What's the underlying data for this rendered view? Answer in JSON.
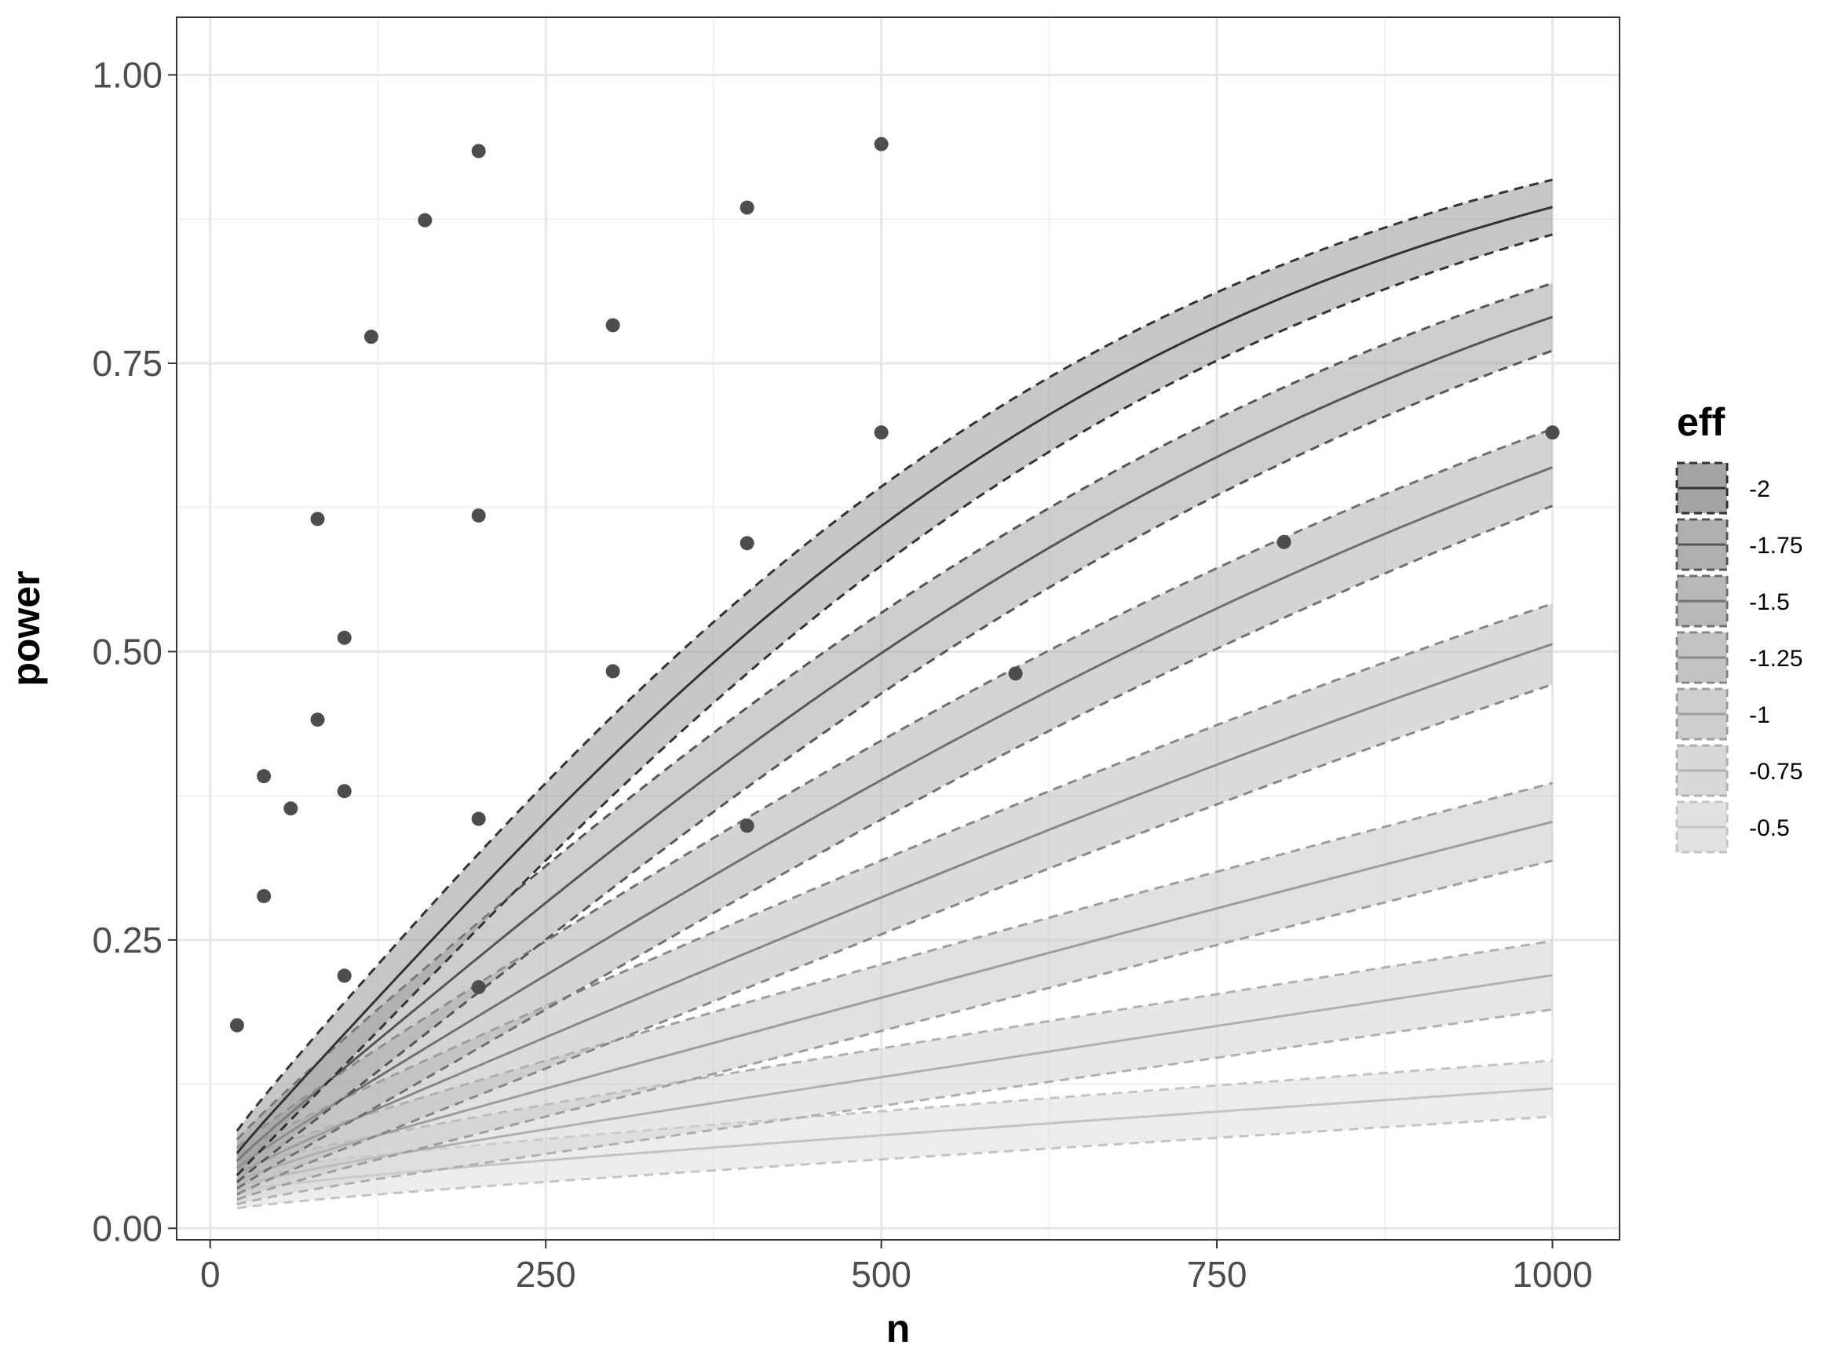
{
  "chart_data": {
    "type": "line",
    "xlabel": "n",
    "ylabel": "power",
    "xlim": [
      -25,
      1050
    ],
    "ylim": [
      -0.01,
      1.05
    ],
    "x_ticks": [
      0,
      250,
      500,
      750,
      1000
    ],
    "x_tick_labels": [
      "0",
      "250",
      "500",
      "750",
      "1000"
    ],
    "y_ticks": [
      0,
      0.25,
      0.5,
      0.75,
      1
    ],
    "y_tick_labels": [
      "0.00",
      "0.25",
      "0.50",
      "0.75",
      "1.00"
    ],
    "grid": true,
    "legend": {
      "title": "eff",
      "position": "right"
    },
    "curve_n_range": [
      20,
      1000
    ],
    "series": [
      {
        "name": "-2",
        "color": "#333333",
        "ribbon": "#999999"
      },
      {
        "name": "-1.75",
        "color": "#555555",
        "ribbon": "#a6a6a6"
      },
      {
        "name": "-1.5",
        "color": "#707070",
        "ribbon": "#b0b0b0"
      },
      {
        "name": "-1.25",
        "color": "#888888",
        "ribbon": "#bdbdbd"
      },
      {
        "name": "-1",
        "color": "#9e9e9e",
        "ribbon": "#c9c9c9"
      },
      {
        "name": "-0.75",
        "color": "#b0b0b0",
        "ribbon": "#d4d4d4"
      },
      {
        "name": "-0.5",
        "color": "#c4c4c4",
        "ribbon": "#dedede"
      }
    ],
    "points": [
      {
        "x": 20,
        "y": 0.176
      },
      {
        "x": 40,
        "y": 0.392
      },
      {
        "x": 40,
        "y": 0.288
      },
      {
        "x": 60,
        "y": 0.364
      },
      {
        "x": 80,
        "y": 0.615
      },
      {
        "x": 80,
        "y": 0.441
      },
      {
        "x": 100,
        "y": 0.512
      },
      {
        "x": 100,
        "y": 0.379
      },
      {
        "x": 100,
        "y": 0.219
      },
      {
        "x": 120,
        "y": 0.773
      },
      {
        "x": 160,
        "y": 0.874
      },
      {
        "x": 200,
        "y": 0.934
      },
      {
        "x": 200,
        "y": 0.618
      },
      {
        "x": 200,
        "y": 0.355
      },
      {
        "x": 200,
        "y": 0.209
      },
      {
        "x": 300,
        "y": 0.783
      },
      {
        "x": 300,
        "y": 0.483
      },
      {
        "x": 400,
        "y": 0.885
      },
      {
        "x": 400,
        "y": 0.594
      },
      {
        "x": 400,
        "y": 0.349
      },
      {
        "x": 500,
        "y": 0.94
      },
      {
        "x": 500,
        "y": 0.69
      },
      {
        "x": 600,
        "y": 0.481
      },
      {
        "x": 800,
        "y": 0.595
      },
      {
        "x": 1000,
        "y": 0.69
      }
    ],
    "point_color": "#4d4d4d"
  }
}
